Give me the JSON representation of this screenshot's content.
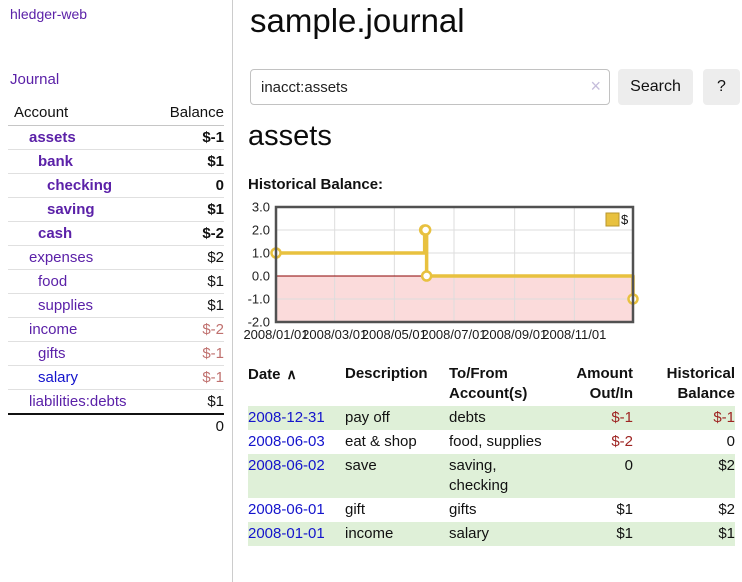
{
  "colors": {
    "link_purple": "#5b21a8",
    "link_blue": "#1414cc",
    "negative_strong": "#8e1a1a",
    "negative_soft": "#c0716f",
    "negative_table": "#9e2422",
    "row_stripe_green": "#dff0d8",
    "chart_line": "#e8c13f",
    "chart_negative_fill": "#fbdbdb",
    "chart_zero_line": "#8b0000",
    "chart_grid": "#dddddd",
    "chart_border": "#515151"
  },
  "brand": "hledger-web",
  "nav": {
    "journal": "Journal"
  },
  "sidebar": {
    "col_account": "Account",
    "col_balance": "Balance",
    "rows": [
      {
        "name": "assets",
        "balance": "$-1",
        "depth": 1,
        "em": true,
        "tone": "neg-strong"
      },
      {
        "name": "bank",
        "balance": "$1",
        "depth": 2,
        "em": true,
        "tone": "pos"
      },
      {
        "name": "checking",
        "balance": "0",
        "depth": 3,
        "em": true,
        "tone": "pos"
      },
      {
        "name": "saving",
        "balance": "$1",
        "depth": 3,
        "em": true,
        "tone": "pos"
      },
      {
        "name": "cash",
        "balance": "$-2",
        "depth": 2,
        "em": true,
        "tone": "neg-strong"
      },
      {
        "name": "expenses",
        "balance": "$2",
        "depth": 1,
        "em": false,
        "tone": "pos"
      },
      {
        "name": "food",
        "balance": "$1",
        "depth": 2,
        "em": false,
        "tone": "pos"
      },
      {
        "name": "supplies",
        "balance": "$1",
        "depth": 2,
        "em": false,
        "tone": "pos"
      },
      {
        "name": "income",
        "balance": "$-2",
        "depth": 1,
        "em": false,
        "tone": "neg-soft"
      },
      {
        "name": "gifts",
        "balance": "$-1",
        "depth": 2,
        "em": false,
        "tone": "neg-soft"
      },
      {
        "name": "salary",
        "balance": "$-1",
        "depth": 2,
        "em": false,
        "tone": "neg-soft",
        "link_style": "unvisited"
      },
      {
        "name": "liabilities:debts",
        "balance": "$1",
        "depth": 1,
        "em": false,
        "tone": "pos"
      }
    ],
    "total": "0"
  },
  "header": {
    "title": "sample.journal"
  },
  "search": {
    "value": "inacct:assets",
    "clear": "×",
    "submit": "Search",
    "help": "?"
  },
  "account_page": {
    "heading": "assets",
    "chart_title": "Historical Balance:"
  },
  "chart_data": {
    "type": "line",
    "step": true,
    "title": "Historical Balance",
    "series": [
      {
        "name": "$",
        "points": [
          [
            "2008-01-01",
            1
          ],
          [
            "2008-06-01",
            2
          ],
          [
            "2008-06-02",
            2
          ],
          [
            "2008-06-03",
            0
          ],
          [
            "2008-12-31",
            -1
          ]
        ]
      }
    ],
    "xlim": [
      "2008-01-01",
      "2008-12-31"
    ],
    "ylim": [
      -2,
      3
    ],
    "x_ticks": [
      {
        "date": "2008-01-01",
        "label": "2008/01/01"
      },
      {
        "date": "2008-03-01",
        "label": "2008/03/01"
      },
      {
        "date": "2008-05-01",
        "label": "2008/05/01"
      },
      {
        "date": "2008-07-01",
        "label": "2008/07/01"
      },
      {
        "date": "2008-09-01",
        "label": "2008/09/01"
      },
      {
        "date": "2008-11-01",
        "label": "2008/11/01"
      }
    ],
    "y_ticks": [
      {
        "value": 3,
        "label": "3.0"
      },
      {
        "value": 2,
        "label": "2.0"
      },
      {
        "value": 1,
        "label": "1.0"
      },
      {
        "value": 0,
        "label": "0.0"
      },
      {
        "value": -1,
        "label": "-1.0"
      },
      {
        "value": -2,
        "label": "-2.0"
      }
    ],
    "grid": true,
    "negative_region_shaded": true,
    "legend": {
      "label": "$",
      "position": "top-right"
    }
  },
  "register": {
    "headers": {
      "date": "Date",
      "sort_icon": "∧",
      "description": "Description",
      "tofrom": "To/From Account(s)",
      "amount": "Amount Out/In",
      "balance": "Historical Balance"
    },
    "rows": [
      {
        "date": "2008-12-31",
        "description": "pay off",
        "accounts": "debts",
        "amount": "$-1",
        "balance": "$-1"
      },
      {
        "date": "2008-06-03",
        "description": "eat & shop",
        "accounts": "food, supplies",
        "amount": "$-2",
        "balance": "0"
      },
      {
        "date": "2008-06-02",
        "description": "save",
        "accounts": "saving, checking",
        "amount": "0",
        "balance": "$2"
      },
      {
        "date": "2008-06-01",
        "description": "gift",
        "accounts": "gifts",
        "amount": "$1",
        "balance": "$2"
      },
      {
        "date": "2008-01-01",
        "description": "income",
        "accounts": "salary",
        "amount": "$1",
        "balance": "$1"
      }
    ]
  }
}
